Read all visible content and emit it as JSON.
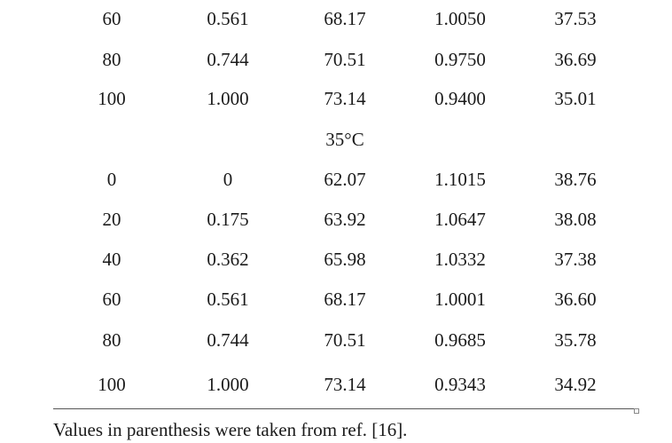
{
  "table": {
    "rows_before": [
      [
        "60",
        "0.561",
        "68.17",
        "1.0050",
        "37.53"
      ],
      [
        "80",
        "0.744",
        "70.51",
        "0.9750",
        "36.69"
      ],
      [
        "100",
        "1.000",
        "73.14",
        "0.9400",
        "35.01"
      ]
    ],
    "group_label": "35°C",
    "rows_35C": [
      [
        "0",
        "0",
        "62.07",
        "1.1015",
        "38.76"
      ],
      [
        "20",
        "0.175",
        "63.92",
        "1.0647",
        "38.08"
      ],
      [
        "40",
        "0.362",
        "65.98",
        "1.0332",
        "37.38"
      ],
      [
        "60",
        "0.561",
        "68.17",
        "1.0001",
        "36.60"
      ],
      [
        "80",
        "0.744",
        "70.51",
        "0.9685",
        "35.78"
      ],
      [
        "100",
        "1.000",
        "73.14",
        "0.9343",
        "34.92"
      ]
    ]
  },
  "footnote": "Values in parenthesis were taken from ref. [16]."
}
